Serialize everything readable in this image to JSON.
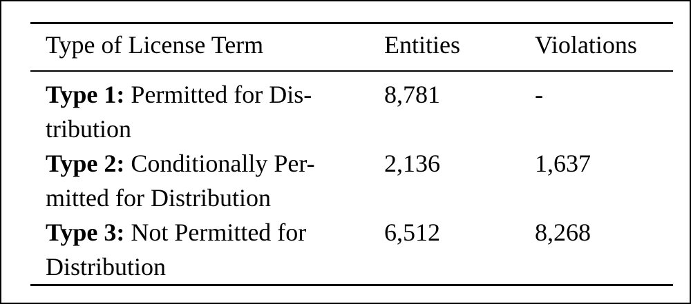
{
  "table": {
    "headers": [
      "Type of License Term",
      "Entities",
      "Violations"
    ],
    "rows": [
      {
        "label": "Type 1:",
        "term": "Permitted for Distribution",
        "term_lines": [
          "Permitted for Dis-",
          "tribution"
        ],
        "entities": "8,781",
        "violations": "-",
        "violations_bold": false
      },
      {
        "label": "Type 2:",
        "term": "Conditionally Permitted for Distribution",
        "term_lines": [
          "Conditionally Per-",
          "mitted for Distribution"
        ],
        "entities": "2,136",
        "violations": "1,637",
        "violations_bold": true
      },
      {
        "label": "Type 3:",
        "term": "Not Permitted for Distribution",
        "term_lines": [
          "Not Permitted for",
          "Distribution"
        ],
        "entities": "6,512",
        "violations": "8,268",
        "violations_bold": true
      }
    ]
  },
  "colors": {
    "text": "#000000",
    "background": "#ffffff",
    "rule": "#000000",
    "frame_border": "#000000"
  }
}
